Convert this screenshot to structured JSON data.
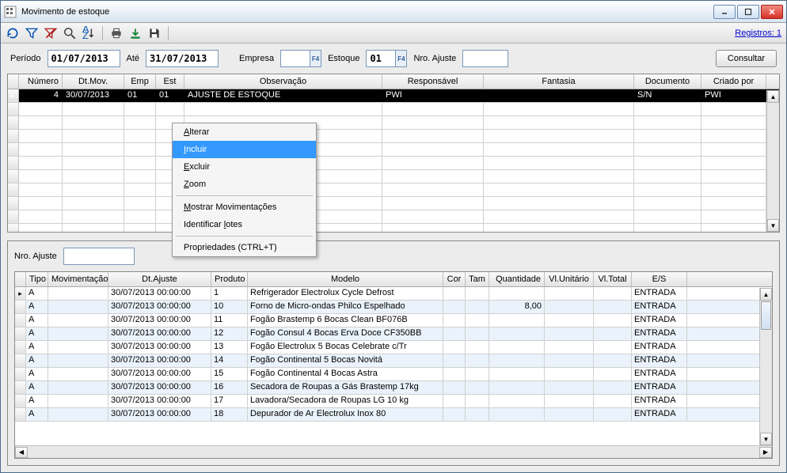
{
  "window": {
    "title": "Movimento de estoque"
  },
  "toolbar": {
    "registros_link": "Registros: 1"
  },
  "filter": {
    "periodo_label": "Período",
    "periodo_de": "01/07/2013",
    "ate_label": "Até",
    "periodo_ate": "31/07/2013",
    "empresa_label": "Empresa",
    "empresa": "",
    "estoque_label": "Estoque",
    "estoque": "01",
    "nro_ajuste_label": "Nro. Ajuste",
    "nro_ajuste": "",
    "consultar": "Consultar"
  },
  "grid1": {
    "headers": {
      "numero": "Número",
      "dtmov": "Dt.Mov.",
      "emp": "Emp",
      "est": "Est",
      "obs": "Observação",
      "resp": "Responsável",
      "fant": "Fantasia",
      "doc": "Documento",
      "criado": "Criado por"
    },
    "row": {
      "numero": "4",
      "dtmov": "30/07/2013",
      "emp": "01",
      "est": "01",
      "obs": "AJUSTE DE ESTOQUE",
      "resp": "PWI",
      "fant": "",
      "doc": "S/N",
      "criado": "PWI"
    }
  },
  "context": {
    "alterar": "Alterar",
    "incluir": "Incluir",
    "excluir": "Excluir",
    "zoom": "Zoom",
    "mostrar": "Mostrar Movimentações",
    "identificar": "Identificar lotes",
    "propriedades": "Propriedades (CTRL+T)"
  },
  "lower": {
    "nro_label": "Nro. Ajuste",
    "nro_val": "",
    "headers": {
      "tipo": "Tipo",
      "mov": "Movimentação",
      "dtaj": "Dt.Ajuste",
      "prod": "Produto",
      "mod": "Modelo",
      "cor": "Cor",
      "tam": "Tam",
      "qtd": "Quantidade",
      "vu": "Vl.Unitário",
      "vt": "Vl.Total",
      "es": "E/S"
    },
    "rows": [
      {
        "tipo": "A",
        "dtaj": "30/07/2013 00:00:00",
        "prod": "1",
        "mod": "Refrigerador Electrolux Cycle Defrost",
        "qtd": "",
        "es": "ENTRADA"
      },
      {
        "tipo": "A",
        "dtaj": "30/07/2013 00:00:00",
        "prod": "10",
        "mod": "Forno de Micro-ondas Philco Espelhado",
        "qtd": "8,00",
        "es": "ENTRADA"
      },
      {
        "tipo": "A",
        "dtaj": "30/07/2013 00:00:00",
        "prod": "11",
        "mod": "Fogão Brastemp 6 Bocas Clean BF076B",
        "qtd": "",
        "es": "ENTRADA"
      },
      {
        "tipo": "A",
        "dtaj": "30/07/2013 00:00:00",
        "prod": "12",
        "mod": "Fogão Consul 4 Bocas Erva Doce CF350BB",
        "qtd": "",
        "es": "ENTRADA"
      },
      {
        "tipo": "A",
        "dtaj": "30/07/2013 00:00:00",
        "prod": "13",
        "mod": "Fogão Electrolux 5 Bocas Celebrate c/Tr",
        "qtd": "",
        "es": "ENTRADA"
      },
      {
        "tipo": "A",
        "dtaj": "30/07/2013 00:00:00",
        "prod": "14",
        "mod": "Fogão Continental 5 Bocas Novitá",
        "qtd": "",
        "es": "ENTRADA"
      },
      {
        "tipo": "A",
        "dtaj": "30/07/2013 00:00:00",
        "prod": "15",
        "mod": "Fogão Continental 4 Bocas Astra",
        "qtd": "",
        "es": "ENTRADA"
      },
      {
        "tipo": "A",
        "dtaj": "30/07/2013 00:00:00",
        "prod": "16",
        "mod": "Secadora de Roupas a Gás Brastemp 17kg",
        "qtd": "",
        "es": "ENTRADA"
      },
      {
        "tipo": "A",
        "dtaj": "30/07/2013 00:00:00",
        "prod": "17",
        "mod": "Lavadora/Secadora de Roupas LG 10 kg",
        "qtd": "",
        "es": "ENTRADA"
      },
      {
        "tipo": "A",
        "dtaj": "30/07/2013 00:00:00",
        "prod": "18",
        "mod": "Depurador de Ar Electrolux Inox 80",
        "qtd": "",
        "es": "ENTRADA"
      }
    ]
  },
  "colors": {
    "highlight": "#3399ff",
    "selrow": "#000000",
    "altrow": "#eaf3fb"
  }
}
